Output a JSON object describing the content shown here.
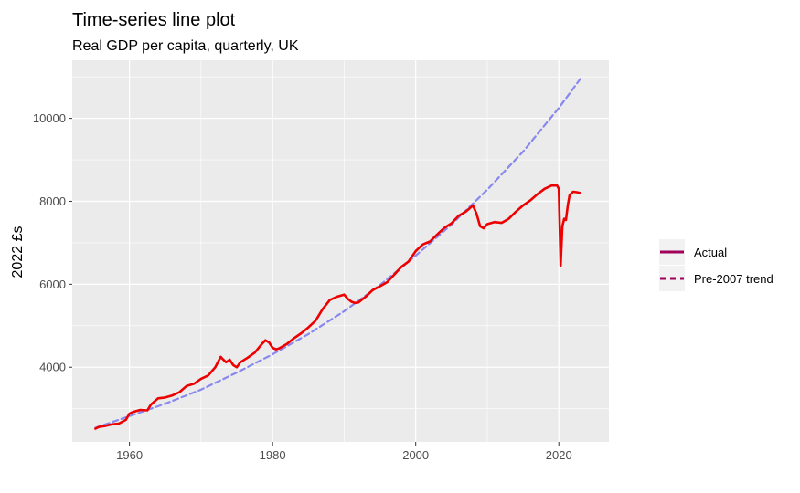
{
  "chart_data": {
    "type": "line",
    "title": "Time-series line plot",
    "subtitle": "Real GDP per capita, quarterly, UK",
    "xlabel": "",
    "ylabel": "2022 £s",
    "xlim": [
      1952,
      2027
    ],
    "ylim": [
      2200,
      11400
    ],
    "x_ticks": [
      1960,
      1980,
      2000,
      2020
    ],
    "y_ticks": [
      4000,
      6000,
      8000,
      10000
    ],
    "grid": true,
    "legend_position": "right",
    "series": [
      {
        "name": "Actual",
        "style": "solid",
        "color": "#EE0000",
        "legend_color": "#A0005A",
        "x": [
          1955.25,
          1955.75,
          1956.5,
          1957.5,
          1958.5,
          1959.5,
          1960.0,
          1960.5,
          1961.5,
          1962.5,
          1963.0,
          1964.0,
          1965.0,
          1966.0,
          1967.0,
          1968.0,
          1969.0,
          1970.0,
          1971.0,
          1972.0,
          1972.75,
          1973.0,
          1973.5,
          1974.0,
          1974.5,
          1975.0,
          1975.5,
          1976.5,
          1977.5,
          1978.5,
          1979.0,
          1979.5,
          1980.0,
          1980.5,
          1981.0,
          1982.0,
          1983.0,
          1984.0,
          1985.0,
          1986.0,
          1987.0,
          1988.0,
          1989.0,
          1990.0,
          1990.5,
          1991.0,
          1991.5,
          1992.0,
          1993.0,
          1994.0,
          1995.0,
          1996.0,
          1997.0,
          1998.0,
          1999.0,
          2000.0,
          2001.0,
          2002.0,
          2003.0,
          2004.0,
          2005.0,
          2006.0,
          2007.0,
          2008.0,
          2008.5,
          2009.0,
          2009.5,
          2010.0,
          2011.0,
          2012.0,
          2013.0,
          2014.0,
          2015.0,
          2016.0,
          2017.0,
          2018.0,
          2019.0,
          2019.75,
          2020.0,
          2020.25,
          2020.5,
          2020.75,
          2021.0,
          2021.25,
          2021.5,
          2022.0,
          2022.5,
          2023.0
        ],
        "values": [
          2520,
          2560,
          2580,
          2620,
          2640,
          2730,
          2880,
          2920,
          2970,
          2960,
          3100,
          3250,
          3270,
          3320,
          3400,
          3550,
          3600,
          3720,
          3800,
          4000,
          4250,
          4200,
          4120,
          4180,
          4050,
          4000,
          4120,
          4230,
          4350,
          4560,
          4650,
          4600,
          4470,
          4430,
          4460,
          4560,
          4700,
          4820,
          4960,
          5120,
          5400,
          5620,
          5700,
          5750,
          5650,
          5580,
          5550,
          5560,
          5700,
          5860,
          5950,
          6050,
          6230,
          6420,
          6550,
          6800,
          6960,
          7030,
          7200,
          7360,
          7470,
          7650,
          7750,
          7900,
          7700,
          7400,
          7350,
          7450,
          7500,
          7480,
          7580,
          7750,
          7900,
          8020,
          8170,
          8300,
          8380,
          8380,
          8300,
          6450,
          7400,
          7580,
          7550,
          7900,
          8150,
          8230,
          8220,
          8200
        ]
      },
      {
        "name": "Pre-2007 trend",
        "style": "dashed",
        "color": "#8888EE",
        "legend_color": "#A0005A",
        "x": [
          1955.25,
          1960.0,
          1965.0,
          1970.0,
          1975.0,
          1980.0,
          1985.0,
          1990.0,
          1995.0,
          2000.0,
          2005.0,
          2010.0,
          2015.0,
          2020.0,
          2023.0
        ],
        "values": [
          2540,
          2820,
          3120,
          3460,
          3870,
          4310,
          4800,
          5350,
          5980,
          6690,
          7440,
          8280,
          9200,
          10250,
          10950
        ]
      }
    ]
  }
}
